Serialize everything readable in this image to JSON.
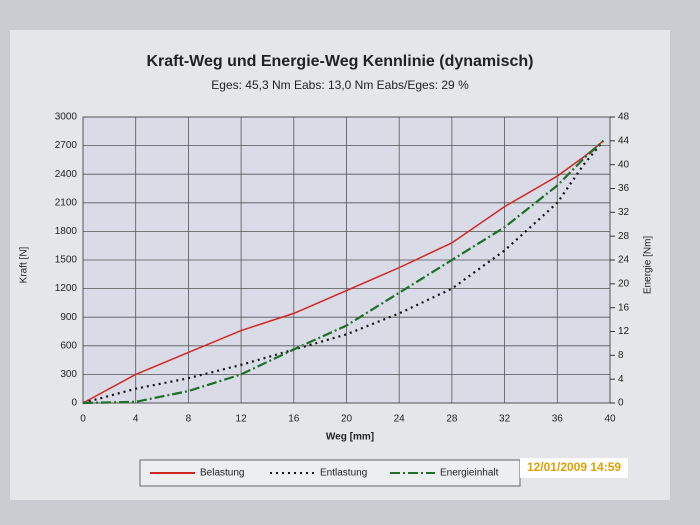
{
  "chart_data": {
    "type": "line",
    "title": "Kraft-Weg und Energie-Weg Kennlinie (dynamisch)",
    "subtitle": "Eges: 45,3 Nm     Eabs: 13,0 Nm     Eabs/Eges: 29 %",
    "x_label": "Weg [mm]",
    "y_label": "Kraft [N]",
    "y2_label": "Energie [Nm]",
    "timestamp": "12/01/2009 14:59",
    "x": [
      0,
      4,
      8,
      12,
      16,
      20,
      24,
      28,
      32,
      36,
      38,
      39.5
    ],
    "xlim": [
      0,
      40
    ],
    "xticks": [
      0,
      4,
      8,
      12,
      16,
      20,
      24,
      28,
      32,
      36,
      40
    ],
    "ylim": [
      0,
      3000
    ],
    "yticks": [
      0,
      300,
      600,
      900,
      1200,
      1500,
      1800,
      2100,
      2400,
      2700,
      3000
    ],
    "y2lim": [
      0,
      48
    ],
    "y2ticks": [
      0,
      4,
      8,
      12,
      16,
      20,
      24,
      28,
      32,
      36,
      40,
      44,
      48
    ],
    "grid": true,
    "legend": "bottom",
    "series": [
      {
        "name": "Belastung",
        "color": "#d42525",
        "values": [
          0,
          300,
          530,
          760,
          940,
          1180,
          1420,
          1680,
          2060,
          2380,
          2580,
          2750
        ]
      },
      {
        "name": "Entlastung",
        "color": "#111111",
        "values": [
          0,
          150,
          260,
          400,
          560,
          720,
          940,
          1200,
          1600,
          2100,
          2500,
          2750
        ]
      },
      {
        "name": "Energieinhalt",
        "color": "#1f6e2a",
        "axis": "y2",
        "values": [
          0,
          0.2,
          2,
          4.8,
          9,
          13,
          18.5,
          24,
          29.5,
          36.5,
          41,
          44
        ]
      }
    ]
  }
}
